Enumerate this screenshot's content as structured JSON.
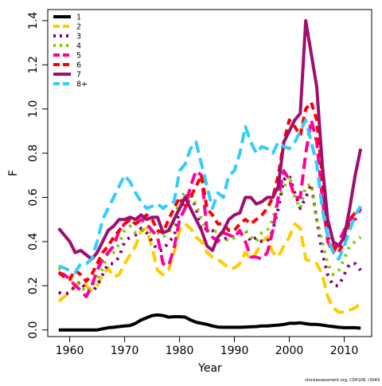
{
  "chart_data": {
    "type": "line",
    "xlabel": "Year",
    "ylabel": "F",
    "xlim": [
      1956,
      2015
    ],
    "ylim": [
      -0.03,
      1.45
    ],
    "xticks": [
      1960,
      1970,
      1980,
      1990,
      2000,
      2010
    ],
    "yticks": [
      0.0,
      0.2,
      0.4,
      0.6,
      0.8,
      1.0,
      1.2,
      1.4
    ],
    "ytick_labels": [
      "0.0",
      "0.2",
      "0.4",
      "0.6",
      "0.8",
      "1.0",
      "1.2",
      "1.4"
    ],
    "legend_position": "top-left",
    "grid": false,
    "x": [
      1958,
      1959,
      1960,
      1961,
      1962,
      1963,
      1964,
      1965,
      1966,
      1967,
      1968,
      1969,
      1970,
      1971,
      1972,
      1973,
      1974,
      1975,
      1976,
      1977,
      1978,
      1979,
      1980,
      1981,
      1982,
      1983,
      1984,
      1985,
      1986,
      1987,
      1988,
      1989,
      1990,
      1991,
      1992,
      1993,
      1994,
      1995,
      1996,
      1997,
      1998,
      1999,
      2000,
      2001,
      2002,
      2003,
      2004,
      2005,
      2006,
      2007,
      2008,
      2009,
      2010,
      2011,
      2012,
      2013
    ],
    "series": [
      {
        "name": "1",
        "color": "#000000",
        "dash": "solid",
        "values": [
          0.0,
          0.0,
          0.0,
          0.0,
          0.0,
          0.0,
          0.0,
          0.0,
          0.005,
          0.01,
          0.012,
          0.015,
          0.018,
          0.02,
          0.03,
          0.045,
          0.055,
          0.065,
          0.068,
          0.065,
          0.058,
          0.06,
          0.06,
          0.058,
          0.045,
          0.035,
          0.03,
          0.025,
          0.018,
          0.013,
          0.012,
          0.012,
          0.012,
          0.012,
          0.013,
          0.014,
          0.015,
          0.018,
          0.018,
          0.02,
          0.022,
          0.025,
          0.03,
          0.03,
          0.032,
          0.028,
          0.025,
          0.025,
          0.022,
          0.018,
          0.015,
          0.012,
          0.01,
          0.01,
          0.01,
          0.008
        ]
      },
      {
        "name": "2",
        "color": "#ffcc00",
        "dash": "long",
        "values": [
          0.13,
          0.15,
          0.17,
          0.2,
          0.22,
          0.2,
          0.18,
          0.2,
          0.25,
          0.28,
          0.24,
          0.25,
          0.3,
          0.34,
          0.38,
          0.45,
          0.46,
          0.37,
          0.27,
          0.25,
          0.27,
          0.35,
          0.45,
          0.48,
          0.46,
          0.42,
          0.4,
          0.35,
          0.33,
          0.32,
          0.3,
          0.28,
          0.28,
          0.3,
          0.35,
          0.32,
          0.35,
          0.4,
          0.42,
          0.35,
          0.33,
          0.38,
          0.42,
          0.48,
          0.46,
          0.32,
          0.31,
          0.3,
          0.25,
          0.15,
          0.1,
          0.08,
          0.08,
          0.09,
          0.1,
          0.12
        ]
      },
      {
        "name": "3",
        "color": "#7f007f",
        "dash": "dot",
        "values": [
          0.17,
          0.16,
          0.17,
          0.2,
          0.22,
          0.18,
          0.17,
          0.2,
          0.25,
          0.3,
          0.3,
          0.33,
          0.4,
          0.42,
          0.43,
          0.46,
          0.44,
          0.4,
          0.36,
          0.36,
          0.4,
          0.42,
          0.55,
          0.6,
          0.62,
          0.55,
          0.45,
          0.46,
          0.45,
          0.43,
          0.41,
          0.42,
          0.42,
          0.44,
          0.45,
          0.4,
          0.42,
          0.4,
          0.4,
          0.45,
          0.55,
          0.68,
          0.7,
          0.62,
          0.55,
          0.6,
          0.66,
          0.5,
          0.35,
          0.25,
          0.2,
          0.2,
          0.25,
          0.3,
          0.3,
          0.27
        ]
      },
      {
        "name": "4",
        "color": "#7fcc00",
        "dash": "dot",
        "values": [
          0.28,
          0.25,
          0.23,
          0.22,
          0.2,
          0.17,
          0.2,
          0.23,
          0.28,
          0.35,
          0.35,
          0.39,
          0.45,
          0.47,
          0.44,
          0.45,
          0.45,
          0.44,
          0.44,
          0.42,
          0.44,
          0.48,
          0.6,
          0.62,
          0.6,
          0.57,
          0.5,
          0.45,
          0.44,
          0.45,
          0.42,
          0.4,
          0.42,
          0.44,
          0.45,
          0.42,
          0.4,
          0.44,
          0.45,
          0.5,
          0.6,
          0.64,
          0.7,
          0.6,
          0.55,
          0.65,
          0.66,
          0.5,
          0.4,
          0.3,
          0.25,
          0.27,
          0.32,
          0.38,
          0.4,
          0.42
        ]
      },
      {
        "name": "5",
        "color": "#ff0099",
        "dash": "long",
        "values": [
          0.26,
          0.25,
          0.23,
          0.2,
          0.18,
          0.15,
          0.2,
          0.27,
          0.32,
          0.35,
          0.38,
          0.45,
          0.48,
          0.5,
          0.48,
          0.5,
          0.48,
          0.45,
          0.42,
          0.3,
          0.29,
          0.37,
          0.5,
          0.55,
          0.65,
          0.72,
          0.7,
          0.45,
          0.42,
          0.4,
          0.44,
          0.43,
          0.42,
          0.45,
          0.4,
          0.33,
          0.33,
          0.32,
          0.35,
          0.45,
          0.6,
          0.72,
          0.68,
          0.6,
          0.6,
          0.8,
          0.95,
          0.85,
          0.6,
          0.4,
          0.35,
          0.4,
          0.45,
          0.5,
          0.5,
          0.55
        ]
      },
      {
        "name": "6",
        "color": "#ff0000",
        "dash": "dash",
        "values": [
          0.26,
          0.24,
          0.23,
          0.27,
          0.25,
          0.22,
          0.25,
          0.3,
          0.35,
          0.38,
          0.42,
          0.45,
          0.48,
          0.5,
          0.48,
          0.5,
          0.52,
          0.5,
          0.45,
          0.44,
          0.5,
          0.55,
          0.6,
          0.55,
          0.6,
          0.65,
          0.7,
          0.55,
          0.52,
          0.48,
          0.48,
          0.45,
          0.45,
          0.48,
          0.5,
          0.48,
          0.5,
          0.52,
          0.55,
          0.6,
          0.7,
          0.85,
          0.95,
          0.92,
          0.88,
          1.0,
          1.03,
          0.95,
          0.7,
          0.42,
          0.38,
          0.35,
          0.4,
          0.5,
          0.53,
          0.55
        ]
      },
      {
        "name": "7",
        "color": "#9e0f6e",
        "dash": "solid",
        "values": [
          0.46,
          0.43,
          0.4,
          0.35,
          0.36,
          0.34,
          0.32,
          0.35,
          0.4,
          0.45,
          0.47,
          0.5,
          0.5,
          0.51,
          0.5,
          0.52,
          0.5,
          0.51,
          0.51,
          0.44,
          0.45,
          0.5,
          0.55,
          0.6,
          0.55,
          0.5,
          0.45,
          0.38,
          0.36,
          0.42,
          0.45,
          0.5,
          0.52,
          0.53,
          0.6,
          0.6,
          0.57,
          0.58,
          0.6,
          0.6,
          0.65,
          0.85,
          0.9,
          0.95,
          0.98,
          1.4,
          1.25,
          1.1,
          0.75,
          0.5,
          0.4,
          0.38,
          0.42,
          0.55,
          0.7,
          0.82
        ]
      },
      {
        "name": "8+",
        "color": "#33ccff",
        "dash": "long",
        "values": [
          0.29,
          0.28,
          0.27,
          0.26,
          0.3,
          0.3,
          0.32,
          0.4,
          0.5,
          0.55,
          0.6,
          0.65,
          0.7,
          0.67,
          0.62,
          0.58,
          0.55,
          0.56,
          0.57,
          0.55,
          0.57,
          0.58,
          0.72,
          0.75,
          0.82,
          0.85,
          0.75,
          0.65,
          0.55,
          0.62,
          0.6,
          0.7,
          0.72,
          0.8,
          0.92,
          0.85,
          0.8,
          0.83,
          0.82,
          0.8,
          0.85,
          0.83,
          0.82,
          0.85,
          0.9,
          0.95,
          0.85,
          0.75,
          0.55,
          0.42,
          0.35,
          0.32,
          0.38,
          0.45,
          0.52,
          0.56
        ]
      }
    ]
  },
  "footer": {
    "credit": "stockassessment.org, CSH108, r3049"
  }
}
